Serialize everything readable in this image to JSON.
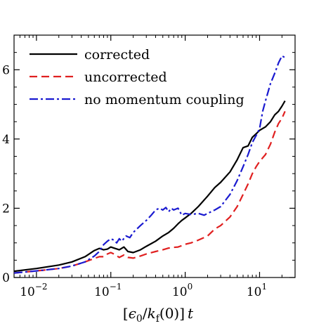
{
  "chart_data": {
    "type": "line",
    "xlabel": "[ϵ0/kf(0)]t",
    "xscale": "log",
    "xlim": [
      0.005,
      30
    ],
    "ylim": [
      0,
      7
    ],
    "grid": false,
    "legend_position": "top-left",
    "x_ticks": [
      {
        "value": 0.01,
        "base": "10",
        "exp": "−2"
      },
      {
        "value": 0.1,
        "base": "10",
        "exp": "−1"
      },
      {
        "value": 1,
        "base": "10",
        "exp": "0"
      },
      {
        "value": 10,
        "base": "10",
        "exp": "1"
      }
    ],
    "y_ticks": [
      {
        "value": 0,
        "label": "0"
      },
      {
        "value": 2,
        "label": "2"
      },
      {
        "value": 4,
        "label": "4"
      },
      {
        "value": 6,
        "label": "6"
      }
    ],
    "series": [
      {
        "name": "corrected",
        "color": "#000000",
        "dash": "solid",
        "points": [
          [
            0.005,
            0.18
          ],
          [
            0.01,
            0.26
          ],
          [
            0.02,
            0.36
          ],
          [
            0.03,
            0.45
          ],
          [
            0.045,
            0.6
          ],
          [
            0.06,
            0.78
          ],
          [
            0.07,
            0.84
          ],
          [
            0.08,
            0.8
          ],
          [
            0.09,
            0.82
          ],
          [
            0.1,
            0.88
          ],
          [
            0.11,
            0.85
          ],
          [
            0.13,
            0.8
          ],
          [
            0.15,
            0.88
          ],
          [
            0.17,
            0.75
          ],
          [
            0.2,
            0.72
          ],
          [
            0.25,
            0.8
          ],
          [
            0.3,
            0.9
          ],
          [
            0.4,
            1.05
          ],
          [
            0.5,
            1.2
          ],
          [
            0.6,
            1.3
          ],
          [
            0.7,
            1.42
          ],
          [
            0.8,
            1.55
          ],
          [
            0.9,
            1.65
          ],
          [
            1,
            1.72
          ],
          [
            1.2,
            1.85
          ],
          [
            1.5,
            2.05
          ],
          [
            2,
            2.35
          ],
          [
            2.5,
            2.6
          ],
          [
            3,
            2.75
          ],
          [
            4,
            3.05
          ],
          [
            5,
            3.4
          ],
          [
            6,
            3.75
          ],
          [
            7,
            3.8
          ],
          [
            8,
            4.05
          ],
          [
            9,
            4.15
          ],
          [
            10,
            4.25
          ],
          [
            12,
            4.35
          ],
          [
            14,
            4.5
          ],
          [
            16,
            4.7
          ],
          [
            18,
            4.8
          ],
          [
            20,
            4.95
          ],
          [
            22,
            5.1
          ]
        ]
      },
      {
        "name": "uncorrected",
        "color": "#e02020",
        "dash": "dashed",
        "points": [
          [
            0.005,
            0.13
          ],
          [
            0.01,
            0.19
          ],
          [
            0.02,
            0.26
          ],
          [
            0.03,
            0.33
          ],
          [
            0.045,
            0.45
          ],
          [
            0.06,
            0.55
          ],
          [
            0.07,
            0.6
          ],
          [
            0.08,
            0.6
          ],
          [
            0.09,
            0.68
          ],
          [
            0.1,
            0.72
          ],
          [
            0.11,
            0.68
          ],
          [
            0.13,
            0.58
          ],
          [
            0.15,
            0.65
          ],
          [
            0.17,
            0.58
          ],
          [
            0.2,
            0.56
          ],
          [
            0.25,
            0.62
          ],
          [
            0.3,
            0.68
          ],
          [
            0.4,
            0.75
          ],
          [
            0.5,
            0.8
          ],
          [
            0.6,
            0.85
          ],
          [
            0.7,
            0.87
          ],
          [
            0.8,
            0.88
          ],
          [
            0.9,
            0.92
          ],
          [
            1,
            0.96
          ],
          [
            1.2,
            1.0
          ],
          [
            1.5,
            1.08
          ],
          [
            2,
            1.2
          ],
          [
            2.5,
            1.4
          ],
          [
            3,
            1.5
          ],
          [
            4,
            1.75
          ],
          [
            5,
            2.05
          ],
          [
            6,
            2.4
          ],
          [
            7,
            2.7
          ],
          [
            8,
            3.0
          ],
          [
            9,
            3.2
          ],
          [
            10,
            3.35
          ],
          [
            12,
            3.55
          ],
          [
            14,
            3.85
          ],
          [
            16,
            4.2
          ],
          [
            18,
            4.45
          ],
          [
            20,
            4.6
          ],
          [
            22,
            4.8
          ]
        ]
      },
      {
        "name": "no momentum coupling",
        "color": "#1a1ad0",
        "dash": "dashdot",
        "points": [
          [
            0.005,
            0.13
          ],
          [
            0.01,
            0.19
          ],
          [
            0.02,
            0.26
          ],
          [
            0.03,
            0.33
          ],
          [
            0.045,
            0.45
          ],
          [
            0.06,
            0.62
          ],
          [
            0.07,
            0.75
          ],
          [
            0.08,
            0.95
          ],
          [
            0.09,
            1.05
          ],
          [
            0.1,
            1.12
          ],
          [
            0.11,
            1.08
          ],
          [
            0.12,
            1.0
          ],
          [
            0.13,
            1.12
          ],
          [
            0.14,
            1.05
          ],
          [
            0.16,
            1.2
          ],
          [
            0.18,
            1.15
          ],
          [
            0.2,
            1.3
          ],
          [
            0.25,
            1.5
          ],
          [
            0.3,
            1.65
          ],
          [
            0.35,
            1.8
          ],
          [
            0.4,
            1.95
          ],
          [
            0.45,
            2.0
          ],
          [
            0.5,
            1.95
          ],
          [
            0.55,
            2.02
          ],
          [
            0.6,
            1.9
          ],
          [
            0.65,
            2.0
          ],
          [
            0.7,
            1.95
          ],
          [
            0.8,
            2.0
          ],
          [
            0.9,
            1.8
          ],
          [
            1,
            1.85
          ],
          [
            1.2,
            1.82
          ],
          [
            1.5,
            1.85
          ],
          [
            1.8,
            1.8
          ],
          [
            2,
            1.85
          ],
          [
            2.5,
            1.95
          ],
          [
            3,
            2.05
          ],
          [
            4,
            2.4
          ],
          [
            5,
            2.8
          ],
          [
            6,
            3.2
          ],
          [
            7,
            3.55
          ],
          [
            8,
            3.9
          ],
          [
            9,
            4.1
          ],
          [
            10,
            4.3
          ],
          [
            11,
            4.8
          ],
          [
            12,
            5.1
          ],
          [
            14,
            5.6
          ],
          [
            16,
            5.9
          ],
          [
            18,
            6.2
          ],
          [
            20,
            6.4
          ],
          [
            22,
            6.35
          ]
        ]
      }
    ]
  }
}
